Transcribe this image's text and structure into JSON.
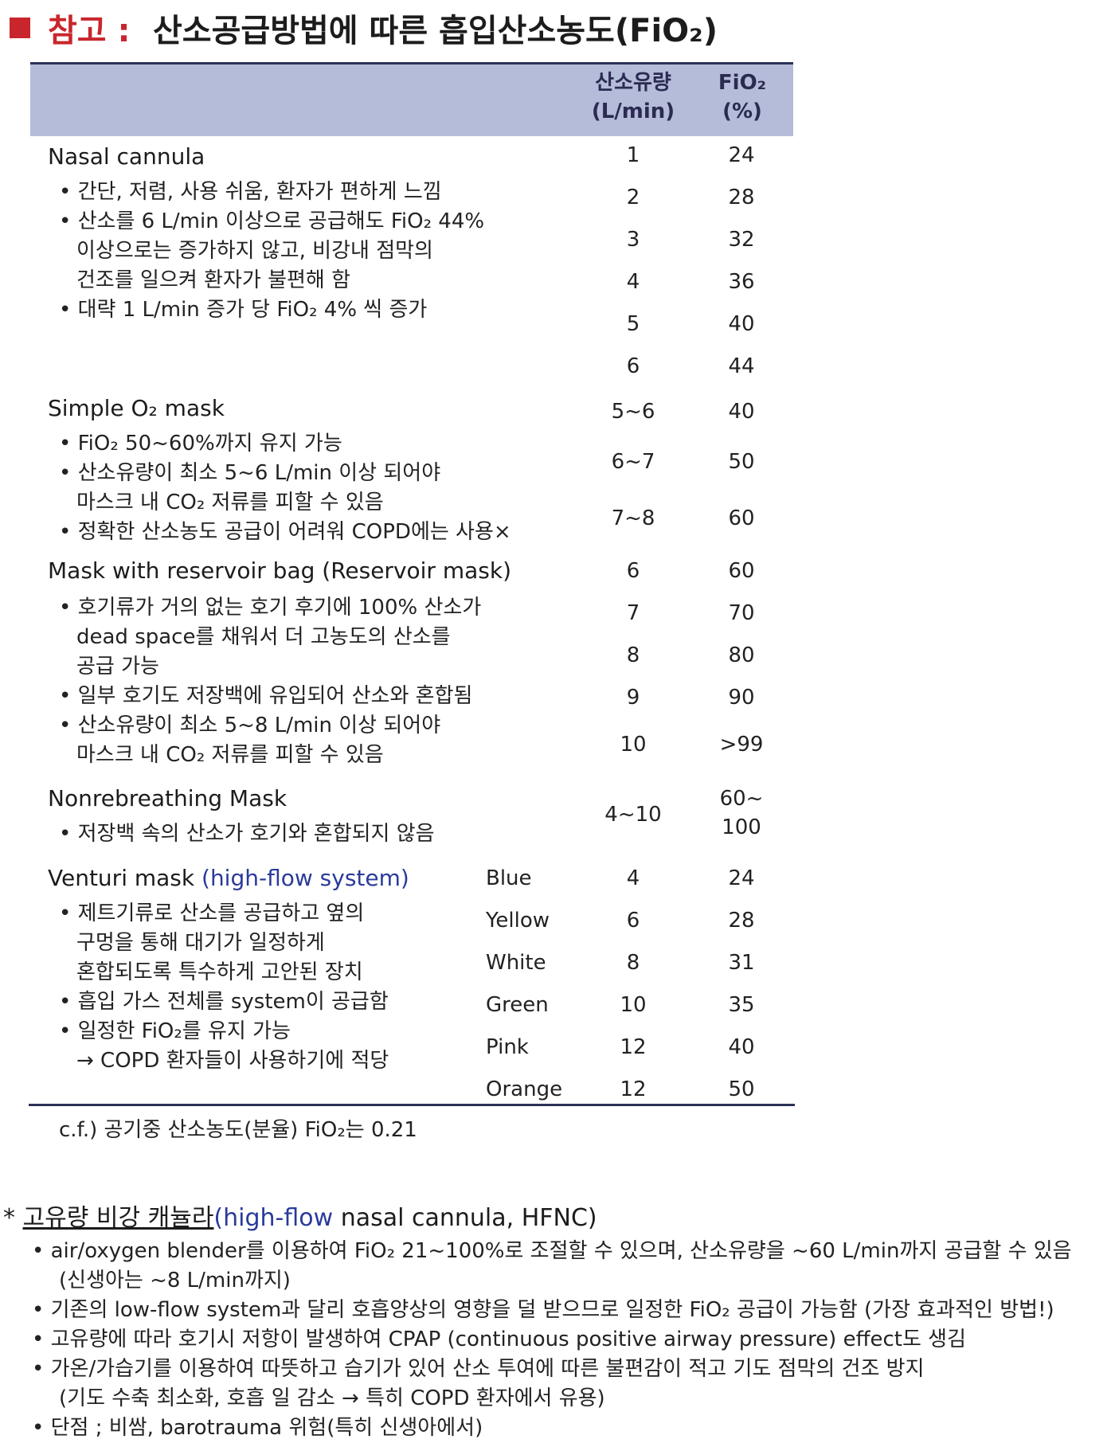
{
  "title": {
    "prefix": "참고 :",
    "main": "산소공급방법에 따른 흡입산소농도(FiO₂)"
  },
  "header": {
    "flow": [
      "산소유량",
      "(L/min)"
    ],
    "fio2": [
      "FiO₂",
      "(%)"
    ]
  },
  "sections": {
    "nasal": {
      "name": "Nasal cannula",
      "bullets": [
        "• 간단, 저렴, 사용 쉬움, 환자가 편하게 느낌",
        "• 산소를 6 L/min 이상으로 공급해도 FiO₂ 44%",
        "이상으로는 증가하지 않고, 비강내 점막의",
        "건조를 일으켜 환자가 불편해 함",
        "• 대략 1 L/min 증가 당 FiO₂ 4% 씩 증가"
      ],
      "flows": [
        "1",
        "2",
        "3",
        "4",
        "5",
        "6"
      ],
      "fio2": [
        "24",
        "28",
        "32",
        "36",
        "40",
        "44"
      ]
    },
    "simple": {
      "name": "Simple O₂ mask",
      "bullets": [
        "• FiO₂ 50~60%까지 유지 가능",
        "• 산소유량이 최소 5~6 L/min 이상 되어야",
        "마스크 내 CO₂ 저류를 피할 수 있음",
        "• 정확한 산소농도 공급이 어려워 COPD에는 사용×"
      ],
      "flows": [
        "5~6",
        "6~7",
        "7~8"
      ],
      "fio2": [
        "40",
        "50",
        "60"
      ]
    },
    "reservoir": {
      "name": "Mask with reservoir bag (Reservoir mask)",
      "bullets": [
        "• 호기류가 거의 없는 호기 후기에 100% 산소가",
        "dead space를 채워서 더 고농도의 산소를",
        "공급 가능",
        "• 일부 호기도 저장백에 유입되어 산소와 혼합됨",
        "• 산소유량이 최소 5~8 L/min 이상 되어야",
        "마스크 내 CO₂ 저류를 피할 수 있음"
      ],
      "flows": [
        "6",
        "7",
        "8",
        "9",
        "10"
      ],
      "fio2": [
        "60",
        "70",
        "80",
        "90",
        ">99"
      ]
    },
    "nonrebreathing": {
      "name": "Nonrebreathing Mask",
      "bullets": [
        "• 저장백 속의 산소가 호기와 혼합되지 않음"
      ],
      "flows": [
        "4~10"
      ],
      "fio2": [
        "60~",
        "100"
      ]
    },
    "venturi": {
      "name": "Venturi mask",
      "note": "(high-flow system)",
      "bullets": [
        "• 제트기류로 산소를 공급하고 옆의",
        "구멍을 통해 대기가 일정하게",
        "혼합되도록 특수하게 고안된 장치",
        "• 흡입 가스 전체를 system이 공급함",
        "• 일정한 FiO₂를 유지 가능",
        "→ COPD 환자들이 사용하기에 적당"
      ],
      "colors": [
        "Blue",
        "Yellow",
        "White",
        "Green",
        "Pink",
        "Orange"
      ],
      "flows": [
        "4",
        "6",
        "8",
        "10",
        "12",
        "12"
      ],
      "fio2": [
        "24",
        "28",
        "31",
        "35",
        "40",
        "50"
      ]
    }
  },
  "cf": "c.f.) 공기중 산소농도(분율) FiO₂는 0.21",
  "hfnc": {
    "star": "*",
    "title_ko": "고유량 비강 캐뉼라",
    "title_paren": "(high-flow",
    "title_rest": "nasal cannula, HFNC)",
    "lines": [
      "• air/oxygen blender를 이용하여 FiO₂ 21~100%로 조절할 수 있으며, 산소유량을 ~60 L/min까지 공급할 수 있음",
      "(신생아는 ~8 L/min까지)",
      "• 기존의 low-flow system과 달리 호흡양상의 영향을 덜 받으므로 일정한 FiO₂ 공급이 가능함 (가장 효과적인 방법!)",
      "• 고유량에 따라 호기시 저항이 발생하여 CPAP (continuous positive airway pressure) effect도 생김",
      "• 가온/가습기를 이용하여 따뜻하고 습기가 있어 산소 투여에 따른 불편감이 적고 기도 점막의 건조 방지",
      "(기도 수축 최소화, 호흡 일 감소 → 특히 COPD 환자에서 유용)",
      "• 단점 ; 비쌈, barotrauma 위험(특히 신생아에서)"
    ]
  }
}
